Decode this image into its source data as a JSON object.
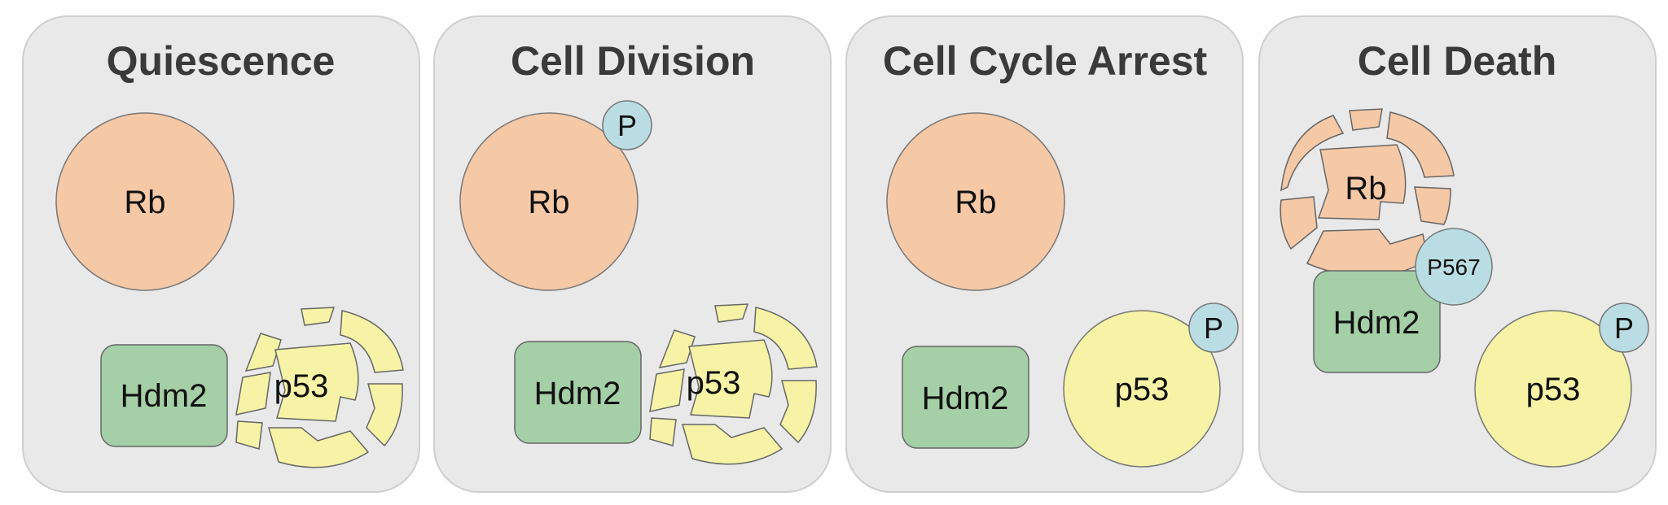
{
  "colors": {
    "panel_fill": "#e9e9ea",
    "panel_stroke": "#cfcfcf",
    "rb_fill": "#f5c8a6",
    "p53_fill": "#f6f3a6",
    "hdm2_fill": "#a5cfa7",
    "phospho_fill": "#b9dde3",
    "outline": "#666666"
  },
  "panels": [
    {
      "title": "Quiescence",
      "rb": {
        "label": "Rb",
        "state": "intact"
      },
      "hdm2": {
        "label": "Hdm2"
      },
      "p53": {
        "label": "p53",
        "state": "degraded"
      }
    },
    {
      "title": "Cell Division",
      "rb": {
        "label": "Rb",
        "state": "intact",
        "phospho": "P"
      },
      "hdm2": {
        "label": "Hdm2"
      },
      "p53": {
        "label": "p53",
        "state": "degraded"
      }
    },
    {
      "title": "Cell Cycle Arrest",
      "rb": {
        "label": "Rb",
        "state": "intact"
      },
      "hdm2": {
        "label": "Hdm2"
      },
      "p53": {
        "label": "p53",
        "state": "intact",
        "phospho": "P"
      }
    },
    {
      "title": "Cell Death",
      "rb": {
        "label": "Rb",
        "state": "degraded",
        "phospho": "P567"
      },
      "hdm2": {
        "label": "Hdm2"
      },
      "p53": {
        "label": "p53",
        "state": "intact",
        "phospho": "P"
      }
    }
  ]
}
